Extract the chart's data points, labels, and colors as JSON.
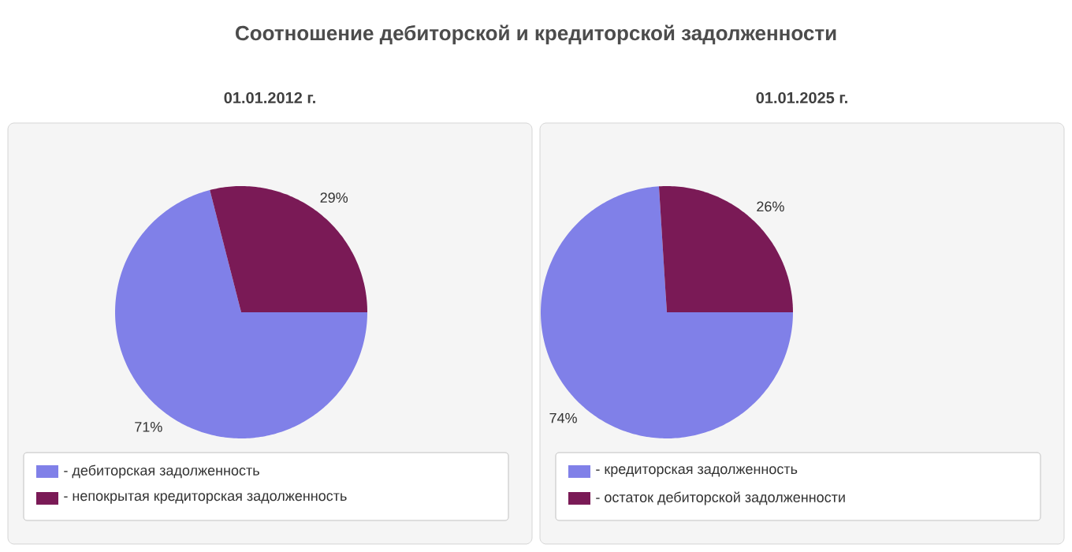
{
  "chart_data": [
    {
      "type": "pie",
      "title": "Соотношение дебиторской и кредиторской задолженности",
      "subtitle": "01.01.2012 г.",
      "categories": [
        "- дебиторская задолженность",
        "- непокрытая кредиторская задолженность"
      ],
      "values": [
        71,
        29
      ],
      "value_labels": [
        "71%",
        "29%"
      ],
      "colors": [
        "#8080e8",
        "#7a1a56"
      ],
      "legend": "bottom"
    },
    {
      "type": "pie",
      "subtitle": "01.01.2025 г.",
      "categories": [
        "- кредиторская задолженность",
        "- остаток дебиторской задолженности"
      ],
      "values": [
        74,
        26
      ],
      "value_labels": [
        "74%",
        "26%"
      ],
      "colors": [
        "#8080e8",
        "#7a1a56"
      ],
      "legend": "bottom"
    }
  ]
}
